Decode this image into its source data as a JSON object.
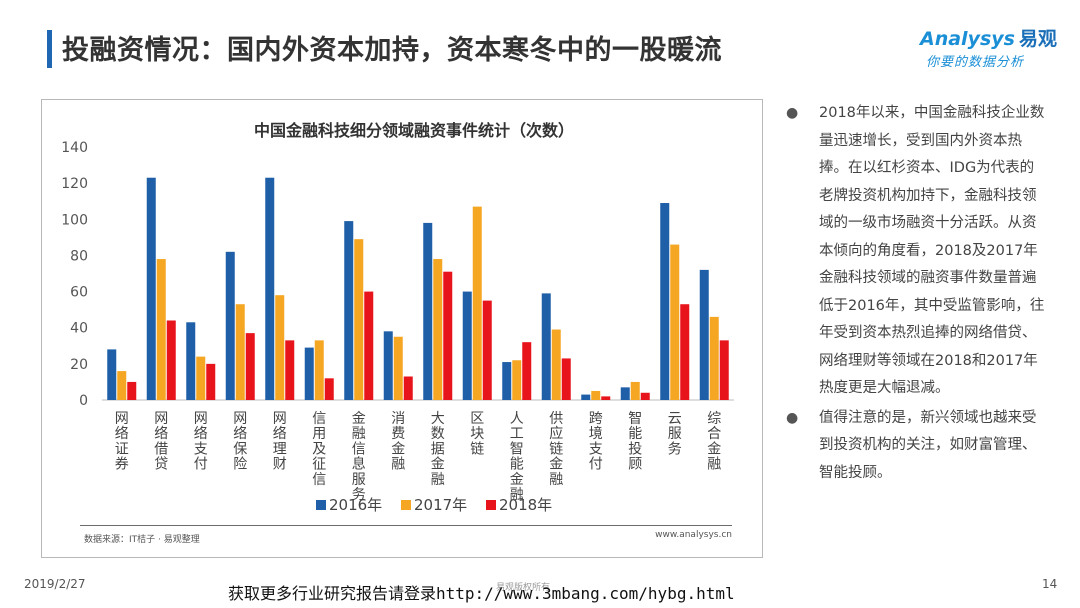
{
  "page": {
    "title": "投融资情况：国内外资本加持，资本寒冬中的一股暖流",
    "date": "2019/2/27",
    "page_number": "14",
    "footer_link_text": "获取更多行业研究报告请登录http://www.3mbang.com/hybg.html",
    "footer_mid_text": "易观版权所有"
  },
  "logo": {
    "brand_en": "Analysys",
    "brand_cn": "易观",
    "tagline": "你要的数据分析"
  },
  "chart_source": {
    "left": "数据来源：IT桔子 · 易观整理",
    "right": "www.analysys.cn"
  },
  "chart_data": {
    "type": "bar",
    "title": "中国金融科技细分领域融资事件统计（次数）",
    "categories": [
      "网络证券",
      "网络借贷",
      "网络支付",
      "网络保险",
      "网络理财",
      "信用及征信",
      "金融信息服务",
      "消费金融",
      "大数据金融",
      "区块链",
      "人工智能金融",
      "供应链金融",
      "跨境支付",
      "智能投顾",
      "云服务",
      "综合金融"
    ],
    "series": [
      {
        "name": "2016年",
        "color": "#1f5fa8",
        "values": [
          28,
          123,
          43,
          82,
          123,
          29,
          99,
          38,
          98,
          60,
          21,
          59,
          3,
          7,
          109,
          72
        ]
      },
      {
        "name": "2017年",
        "color": "#f5a623",
        "values": [
          16,
          78,
          24,
          53,
          58,
          33,
          89,
          35,
          78,
          107,
          22,
          39,
          5,
          10,
          86,
          46
        ]
      },
      {
        "name": "2018年",
        "color": "#e8141b",
        "values": [
          10,
          44,
          20,
          37,
          33,
          12,
          60,
          13,
          71,
          55,
          32,
          23,
          2,
          4,
          53,
          33
        ]
      }
    ],
    "ylim": [
      0,
      140
    ],
    "yticks": [
      0,
      20,
      40,
      60,
      80,
      100,
      120,
      140
    ],
    "grid": false,
    "legend_position": "bottom"
  },
  "bullets": [
    "2018年以来，中国金融科技企业数量迅速增长，受到国内外资本热捧。在以红杉资本、IDG为代表的老牌投资机构加持下，金融科技领域的一级市场融资十分活跃。从资本倾向的角度看，2018及2017年金融科技领域的融资事件数量普遍低于2016年，其中受监管影响，往年受到资本热烈追捧的网络借贷、网络理财等领域在2018和2017年热度更是大幅退减。",
    "值得注意的是，新兴领域也越来受到投资机构的关注，如财富管理、智能投顾。"
  ],
  "colors": {
    "accent_bar": "#1f66b3",
    "logo_blue": "#1a8fd6"
  }
}
